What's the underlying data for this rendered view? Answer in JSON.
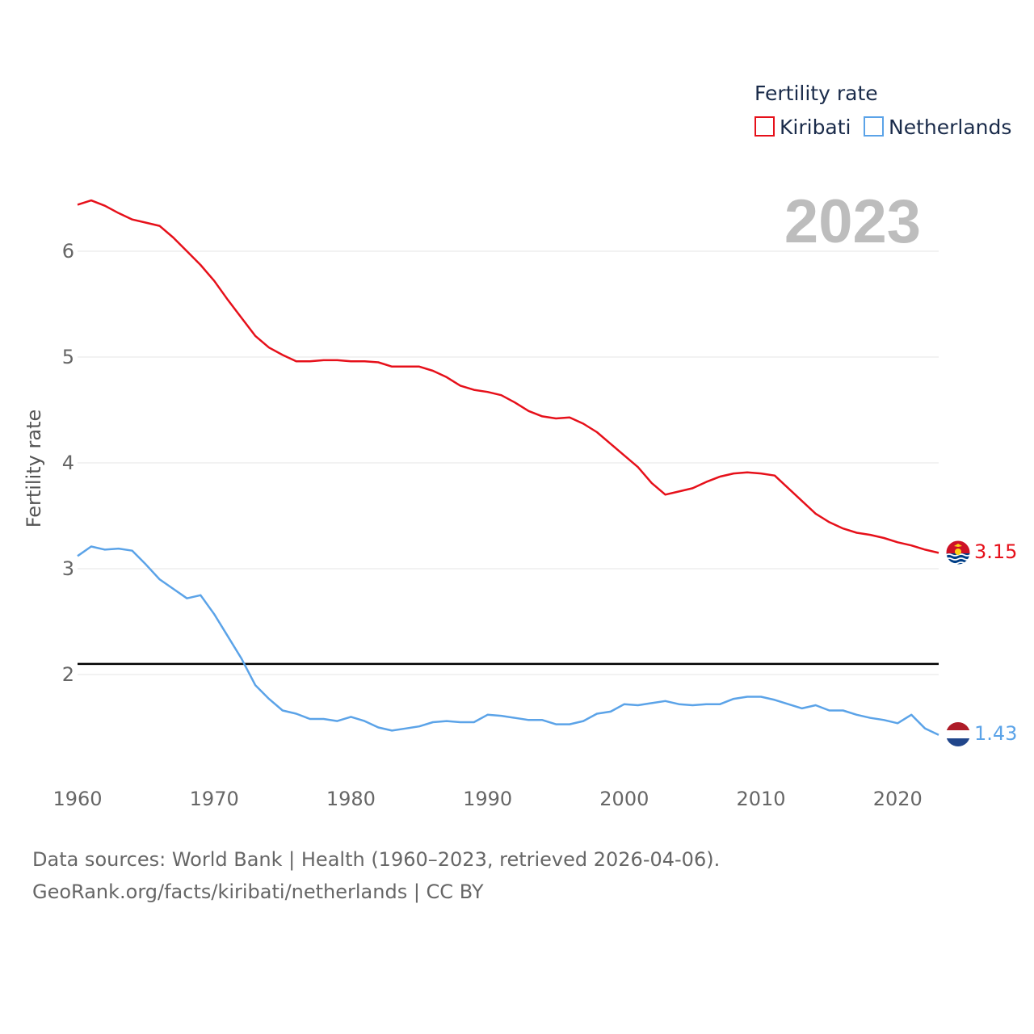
{
  "chart_data": {
    "type": "line",
    "legend_title": "Fertility rate",
    "year_label": "2023",
    "ylabel": "Fertility rate",
    "xlim": [
      1960,
      2023
    ],
    "ylim": [
      1.0,
      6.8
    ],
    "x_ticks": [
      "1960",
      "1970",
      "1980",
      "1990",
      "2000",
      "2010",
      "2020"
    ],
    "y_ticks": [
      "2",
      "3",
      "4",
      "5",
      "6"
    ],
    "reference_line": 2.1,
    "x": [
      1960,
      1961,
      1962,
      1963,
      1964,
      1965,
      1966,
      1967,
      1968,
      1969,
      1970,
      1971,
      1972,
      1973,
      1974,
      1975,
      1976,
      1977,
      1978,
      1979,
      1980,
      1981,
      1982,
      1983,
      1984,
      1985,
      1986,
      1987,
      1988,
      1989,
      1990,
      1991,
      1992,
      1993,
      1994,
      1995,
      1996,
      1997,
      1998,
      1999,
      2000,
      2001,
      2002,
      2003,
      2004,
      2005,
      2006,
      2007,
      2008,
      2009,
      2010,
      2011,
      2012,
      2013,
      2014,
      2015,
      2016,
      2017,
      2018,
      2019,
      2020,
      2021,
      2022,
      2023
    ],
    "series": [
      {
        "name": "Kiribati",
        "color": "#e6101a",
        "end_label": "3.15",
        "values": [
          6.44,
          6.48,
          6.43,
          6.36,
          6.3,
          6.27,
          6.24,
          6.13,
          6.0,
          5.87,
          5.72,
          5.54,
          5.37,
          5.2,
          5.09,
          5.02,
          4.96,
          4.96,
          4.97,
          4.97,
          4.96,
          4.96,
          4.95,
          4.91,
          4.91,
          4.91,
          4.87,
          4.81,
          4.73,
          4.69,
          4.67,
          4.64,
          4.57,
          4.49,
          4.44,
          4.42,
          4.43,
          4.37,
          4.29,
          4.18,
          4.07,
          3.96,
          3.81,
          3.7,
          3.73,
          3.76,
          3.82,
          3.87,
          3.9,
          3.91,
          3.9,
          3.88,
          3.76,
          3.64,
          3.52,
          3.44,
          3.38,
          3.34,
          3.32,
          3.29,
          3.25,
          3.22,
          3.18,
          3.15
        ]
      },
      {
        "name": "Netherlands",
        "color": "#5ba3e8",
        "end_label": "1.43",
        "values": [
          3.12,
          3.21,
          3.18,
          3.19,
          3.17,
          3.04,
          2.9,
          2.81,
          2.72,
          2.75,
          2.57,
          2.36,
          2.15,
          1.9,
          1.77,
          1.66,
          1.63,
          1.58,
          1.58,
          1.56,
          1.6,
          1.56,
          1.5,
          1.47,
          1.49,
          1.51,
          1.55,
          1.56,
          1.55,
          1.55,
          1.62,
          1.61,
          1.59,
          1.57,
          1.57,
          1.53,
          1.53,
          1.56,
          1.63,
          1.65,
          1.72,
          1.71,
          1.73,
          1.75,
          1.72,
          1.71,
          1.72,
          1.72,
          1.77,
          1.79,
          1.79,
          1.76,
          1.72,
          1.68,
          1.71,
          1.66,
          1.66,
          1.62,
          1.59,
          1.57,
          1.54,
          1.62,
          1.49,
          1.43
        ]
      }
    ]
  },
  "footer": {
    "line1": "Data sources: World Bank | Health (1960–2023, retrieved 2026-04-06).",
    "line2": "GeoRank.org/facts/kiribati/netherlands | CC BY"
  }
}
